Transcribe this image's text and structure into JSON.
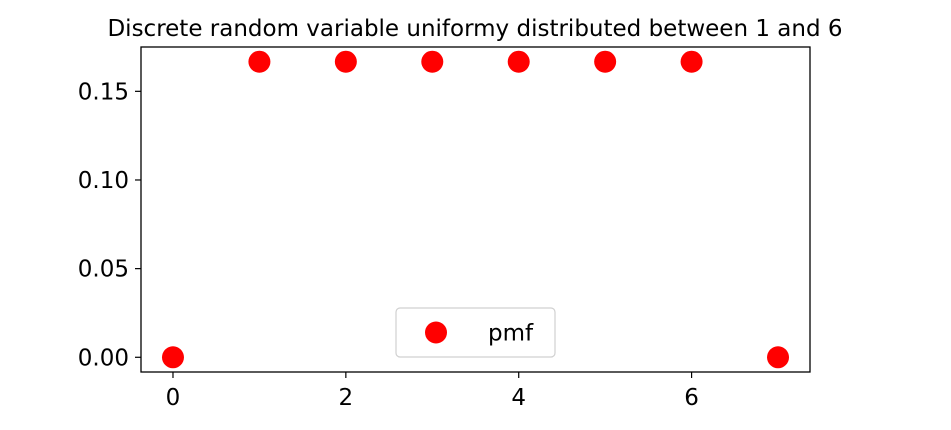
{
  "chart_data": {
    "type": "scatter",
    "title": "Discrete random variable uniformy distributed between 1 and 6",
    "xlabel": "",
    "ylabel": "",
    "xlim": [
      -0.37,
      7.37
    ],
    "ylim": [
      -0.0083,
      0.175
    ],
    "xticks": [
      0,
      2,
      4,
      6
    ],
    "yticks": [
      0.0,
      0.05,
      0.1,
      0.15
    ],
    "ytick_labels": [
      "0.00",
      "0.05",
      "0.10",
      "0.15"
    ],
    "grid": false,
    "legend": {
      "position": "lower-center",
      "entries": [
        "pmf"
      ]
    },
    "series": [
      {
        "name": "pmf",
        "color": "#ff0000",
        "marker": "circle",
        "x": [
          0,
          1,
          2,
          3,
          4,
          5,
          6,
          7
        ],
        "y": [
          0.0,
          0.1667,
          0.1667,
          0.1667,
          0.1667,
          0.1667,
          0.1667,
          0.0
        ]
      }
    ]
  }
}
